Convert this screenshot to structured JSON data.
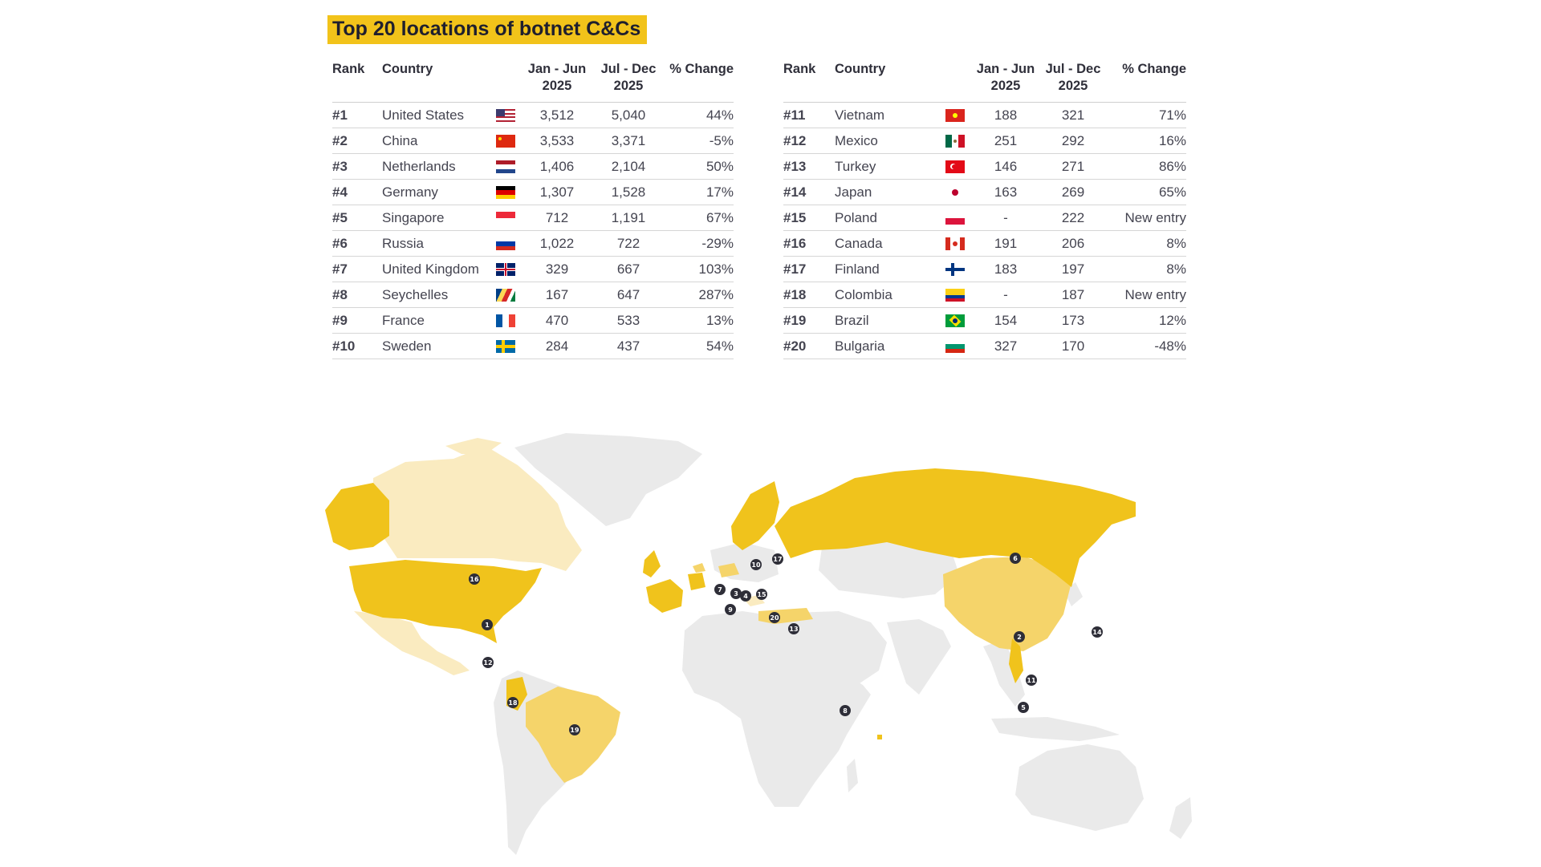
{
  "title": "Top 20 locations of botnet C&Cs",
  "headers": {
    "rank": "Rank",
    "country": "Country",
    "h1_line1": "Jan - Jun",
    "h1_line2": "2025",
    "h2_line1": "Jul - Dec",
    "h2_line2": "2025",
    "change": "% Change"
  },
  "left_rows": [
    {
      "rank": "#1",
      "country": "United States",
      "flag": "us-flag",
      "h1": "3,512",
      "h2": "5,040",
      "change": "44%"
    },
    {
      "rank": "#2",
      "country": "China",
      "flag": "china-flag",
      "h1": "3,533",
      "h2": "3,371",
      "change": "-5%"
    },
    {
      "rank": "#3",
      "country": "Netherlands",
      "flag": "netherlands-flag",
      "h1": "1,406",
      "h2": "2,104",
      "change": "50%"
    },
    {
      "rank": "#4",
      "country": "Germany",
      "flag": "germany-flag",
      "h1": "1,307",
      "h2": "1,528",
      "change": "17%"
    },
    {
      "rank": "#5",
      "country": "Singapore",
      "flag": "singapore-flag",
      "h1": "712",
      "h2": "1,191",
      "change": "67%"
    },
    {
      "rank": "#6",
      "country": "Russia",
      "flag": "russia-flag",
      "h1": "1,022",
      "h2": "722",
      "change": "-29%"
    },
    {
      "rank": "#7",
      "country": "United Kingdom",
      "flag": "uk-flag",
      "h1": "329",
      "h2": "667",
      "change": "103%"
    },
    {
      "rank": "#8",
      "country": "Seychelles",
      "flag": "seychelles-flag",
      "h1": "167",
      "h2": "647",
      "change": "287%"
    },
    {
      "rank": "#9",
      "country": "France",
      "flag": "france-flag",
      "h1": "470",
      "h2": "533",
      "change": "13%"
    },
    {
      "rank": "#10",
      "country": "Sweden",
      "flag": "sweden-flag",
      "h1": "284",
      "h2": "437",
      "change": "54%"
    }
  ],
  "right_rows": [
    {
      "rank": "#11",
      "country": "Vietnam",
      "flag": "vietnam-flag",
      "h1": "188",
      "h2": "321",
      "change": "71%"
    },
    {
      "rank": "#12",
      "country": "Mexico",
      "flag": "mexico-flag",
      "h1": "251",
      "h2": "292",
      "change": "16%"
    },
    {
      "rank": "#13",
      "country": "Turkey",
      "flag": "turkey-flag",
      "h1": "146",
      "h2": "271",
      "change": "86%"
    },
    {
      "rank": "#14",
      "country": "Japan",
      "flag": "japan-flag",
      "h1": "163",
      "h2": "269",
      "change": "65%"
    },
    {
      "rank": "#15",
      "country": "Poland",
      "flag": "poland-flag",
      "h1": "-",
      "h2": "222",
      "change": "New entry"
    },
    {
      "rank": "#16",
      "country": "Canada",
      "flag": "canada-flag",
      "h1": "191",
      "h2": "206",
      "change": "8%"
    },
    {
      "rank": "#17",
      "country": "Finland",
      "flag": "finland-flag",
      "h1": "183",
      "h2": "197",
      "change": "8%"
    },
    {
      "rank": "#18",
      "country": "Colombia",
      "flag": "colombia-flag",
      "h1": "-",
      "h2": "187",
      "change": "New entry"
    },
    {
      "rank": "#19",
      "country": "Brazil",
      "flag": "brazil-flag",
      "h1": "154",
      "h2": "173",
      "change": "12%"
    },
    {
      "rank": "#20",
      "country": "Bulgaria",
      "flag": "bulgaria-flag",
      "h1": "327",
      "h2": "170",
      "change": "-48%"
    }
  ],
  "map": {
    "markers": [
      "1",
      "2",
      "3",
      "4",
      "5",
      "6",
      "7",
      "8",
      "9",
      "10",
      "11",
      "12",
      "13",
      "14",
      "15",
      "16",
      "17",
      "18",
      "19",
      "20"
    ],
    "colors": {
      "dark": "#f0c31c",
      "medium": "#f5d46a",
      "light": "#faebc0",
      "none": "#eaeaea",
      "marker": "#2e2e38"
    }
  }
}
